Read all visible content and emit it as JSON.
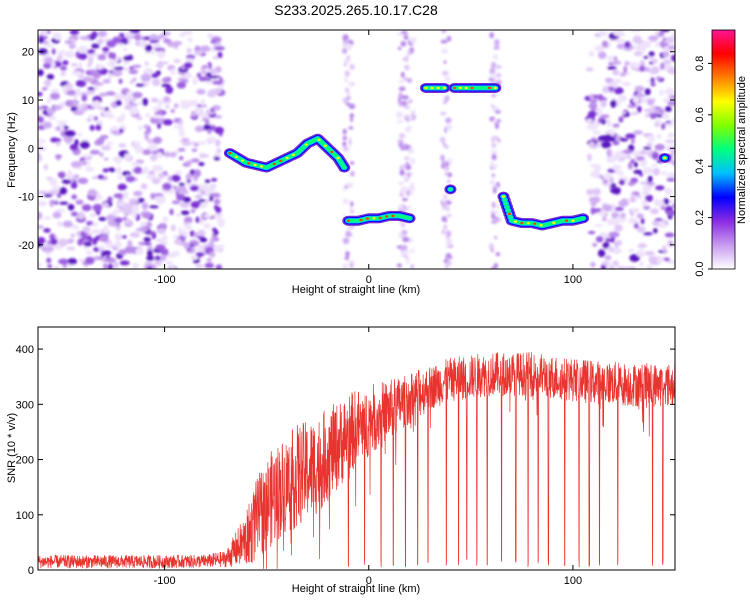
{
  "title": "S233.2025.265.10.17.C28",
  "chart_data": [
    {
      "type": "heatmap",
      "title": "S233.2025.265.10.17.C28",
      "xlabel": "Height of straight line (km)",
      "ylabel": "Frequency (Hz)",
      "xlim": [
        -162,
        150
      ],
      "ylim": [
        -25,
        24.5
      ],
      "x_ticks": [
        -100,
        0,
        100
      ],
      "x_tick_labels": [
        "-100",
        "0",
        "100"
      ],
      "y_ticks": [
        -20,
        -10,
        0,
        10,
        20
      ],
      "y_tick_labels": [
        "-20",
        "-10",
        "0",
        "10",
        "20"
      ],
      "colorbar": {
        "label": "Normalized spectral amplitude",
        "range": [
          0.0,
          0.93
        ],
        "ticks": [
          0.0,
          0.2,
          0.4,
          0.6,
          0.8
        ],
        "tick_labels": [
          "0.0",
          "0.2",
          "0.4",
          "0.6",
          "0.8"
        ],
        "colormap": [
          "#ffffff",
          "#c89bf0",
          "#8a2be2",
          "#0000ff",
          "#00bfff",
          "#00ff80",
          "#7fff00",
          "#ffff00",
          "#ff8000",
          "#ff0000",
          "#ff1493"
        ]
      },
      "noise_regions_km": [
        [
          -162,
          -72
        ],
        [
          108,
          150
        ]
      ],
      "features": [
        {
          "name": "curved ridge",
          "x": [
            -68,
            -60,
            -55,
            -50,
            -45,
            -40,
            -35,
            -30,
            -25,
            -20,
            -15,
            -12
          ],
          "y": [
            -1,
            -3,
            -3.5,
            -4,
            -3,
            -2,
            -1,
            1,
            2,
            0,
            -2,
            -4
          ]
        },
        {
          "name": "band near 0 km",
          "x": [
            -10,
            -5,
            0,
            5,
            10,
            15,
            20
          ],
          "y": [
            -15,
            -15,
            -14.5,
            -14.5,
            -14,
            -14,
            -14.5
          ]
        },
        {
          "name": "upper band A",
          "x": [
            28,
            31,
            34,
            37
          ],
          "y": [
            12.5,
            12.5,
            12.5,
            12.5
          ]
        },
        {
          "name": "upper band B",
          "x": [
            42,
            46,
            50,
            54,
            58,
            62
          ],
          "y": [
            12.5,
            12.5,
            12.5,
            12.5,
            12.5,
            12.5
          ]
        },
        {
          "name": "lower band",
          "x": [
            66,
            70,
            75,
            80,
            85,
            90,
            95,
            100,
            105
          ],
          "y": [
            -10,
            -15,
            -15.5,
            -15.5,
            -16,
            -15.5,
            -15,
            -15,
            -14.5
          ]
        },
        {
          "name": "isolated patch",
          "x": [
            40
          ],
          "y": [
            -8.5
          ]
        },
        {
          "name": "edge patch",
          "x": [
            145
          ],
          "y": [
            -2
          ]
        }
      ]
    },
    {
      "type": "line",
      "xlabel": "Height of straight line (km)",
      "ylabel": "SNR (10 * v/v)",
      "xlim": [
        -162,
        150
      ],
      "ylim": [
        0,
        440
      ],
      "x_ticks": [
        -100,
        0,
        100
      ],
      "x_tick_labels": [
        "-100",
        "0",
        "100"
      ],
      "y_ticks": [
        0,
        100,
        200,
        300,
        400
      ],
      "y_tick_labels": [
        "0",
        "100",
        "200",
        "300",
        "400"
      ],
      "color": "#e8332f",
      "series": [
        {
          "name": "SNR",
          "x": [
            -162,
            -140,
            -120,
            -100,
            -80,
            -70,
            -60,
            -55,
            -50,
            -45,
            -40,
            -35,
            -30,
            -25,
            -20,
            -15,
            -10,
            -5,
            0,
            5,
            10,
            15,
            20,
            25,
            30,
            40,
            50,
            60,
            70,
            80,
            90,
            100,
            110,
            120,
            130,
            140,
            150
          ],
          "y": [
            15,
            15,
            15,
            15,
            16,
            20,
            55,
            90,
            120,
            140,
            155,
            170,
            180,
            190,
            210,
            225,
            245,
            260,
            270,
            280,
            290,
            300,
            310,
            320,
            330,
            345,
            350,
            355,
            355,
            355,
            350,
            345,
            340,
            338,
            335,
            335,
            335
          ],
          "spread": [
            12,
            12,
            12,
            12,
            12,
            15,
            50,
            75,
            85,
            90,
            90,
            95,
            90,
            90,
            85,
            80,
            75,
            70,
            65,
            60,
            55,
            50,
            45,
            45,
            40,
            40,
            40,
            40,
            40,
            40,
            40,
            40,
            40,
            40,
            40,
            40,
            40
          ],
          "dropouts_km": [
            -10,
            -2,
            6,
            12,
            18,
            24,
            29,
            38,
            44,
            48,
            53,
            58,
            65,
            72,
            78,
            83,
            88,
            96,
            103,
            108,
            113,
            122,
            139,
            144
          ]
        }
      ]
    }
  ]
}
